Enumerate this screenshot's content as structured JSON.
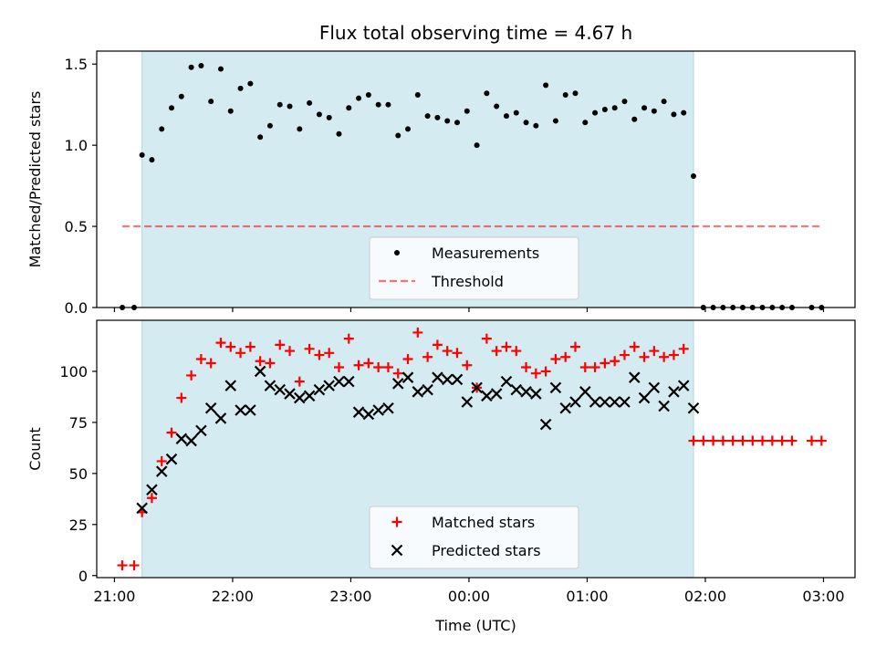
{
  "title": "Flux total observing time = 4.67 h",
  "colors": {
    "span": "#add8e6",
    "measurement": "#000000",
    "threshold": "#ff0000",
    "matched": "#ff0000",
    "predicted": "#000000"
  },
  "chart_data": [
    {
      "type": "scatter",
      "ylabel": "Matched/Predicted stars",
      "xlabel": "",
      "xlim": [
        "20:51",
        "03:16"
      ],
      "ylim": [
        0,
        1.58
      ],
      "yticks": [
        0.0,
        0.5,
        1.0,
        1.5
      ],
      "ytick_labels": [
        "0.0",
        "0.5",
        "1.0",
        "1.5"
      ],
      "shaded_span": [
        "21:14",
        "01:54"
      ],
      "legend_position": "lower center",
      "legend": [
        "Measurements",
        "Threshold"
      ],
      "series": [
        {
          "name": "Measurements",
          "marker": "dot",
          "x": [
            "21:04",
            "21:10",
            "21:14",
            "21:19",
            "21:24",
            "21:29",
            "21:34",
            "21:39",
            "21:44",
            "21:49",
            "21:54",
            "21:59",
            "22:04",
            "22:09",
            "22:14",
            "22:19",
            "22:24",
            "22:29",
            "22:34",
            "22:39",
            "22:44",
            "22:49",
            "22:54",
            "22:59",
            "23:04",
            "23:09",
            "23:14",
            "23:19",
            "23:24",
            "23:29",
            "23:34",
            "23:39",
            "23:44",
            "23:49",
            "23:54",
            "23:59",
            "00:04",
            "00:09",
            "00:14",
            "00:19",
            "00:24",
            "00:29",
            "00:34",
            "00:39",
            "00:44",
            "00:49",
            "00:54",
            "00:59",
            "01:04",
            "01:09",
            "01:14",
            "01:19",
            "01:24",
            "01:29",
            "01:34",
            "01:39",
            "01:44",
            "01:49",
            "01:54",
            "01:59",
            "02:04",
            "02:09",
            "02:14",
            "02:19",
            "02:24",
            "02:29",
            "02:34",
            "02:39",
            "02:44",
            "02:54",
            "02:59"
          ],
          "y": [
            0,
            0,
            0.94,
            0.91,
            1.1,
            1.23,
            1.3,
            1.48,
            1.49,
            1.27,
            1.47,
            1.21,
            1.35,
            1.38,
            1.05,
            1.12,
            1.25,
            1.24,
            1.1,
            1.26,
            1.19,
            1.17,
            1.07,
            1.23,
            1.29,
            1.31,
            1.25,
            1.25,
            1.06,
            1.1,
            1.31,
            1.18,
            1.17,
            1.15,
            1.14,
            1.21,
            1.0,
            1.32,
            1.24,
            1.18,
            1.2,
            1.14,
            1.12,
            1.37,
            1.15,
            1.31,
            1.32,
            1.14,
            1.2,
            1.22,
            1.23,
            1.27,
            1.16,
            1.23,
            1.21,
            1.27,
            1.19,
            1.2,
            0.81,
            0,
            0,
            0,
            0,
            0,
            0,
            0,
            0,
            0,
            0,
            0,
            0
          ]
        },
        {
          "name": "Threshold",
          "style": "dashed",
          "x": [
            "21:04",
            "02:59"
          ],
          "y": [
            0.5,
            0.5
          ]
        }
      ]
    },
    {
      "type": "scatter",
      "ylabel": "Count",
      "xlabel": "Time (UTC)",
      "xlim": [
        "20:51",
        "03:16"
      ],
      "ylim": [
        -1,
        125
      ],
      "yticks": [
        0,
        25,
        50,
        75,
        100
      ],
      "ytick_labels": [
        "0",
        "25",
        "50",
        "75",
        "100"
      ],
      "xtick_labels": [
        "21:00",
        "22:00",
        "23:00",
        "00:00",
        "01:00",
        "02:00",
        "03:00"
      ],
      "shaded_span": [
        "21:14",
        "01:54"
      ],
      "legend_position": "lower center",
      "legend": [
        "Matched stars",
        "Predicted stars"
      ],
      "series": [
        {
          "name": "Matched stars",
          "marker": "plus",
          "x": [
            "21:04",
            "21:10",
            "21:14",
            "21:19",
            "21:24",
            "21:29",
            "21:34",
            "21:39",
            "21:44",
            "21:49",
            "21:54",
            "21:59",
            "22:04",
            "22:09",
            "22:14",
            "22:19",
            "22:24",
            "22:29",
            "22:34",
            "22:39",
            "22:44",
            "22:49",
            "22:54",
            "22:59",
            "23:04",
            "23:09",
            "23:14",
            "23:19",
            "23:24",
            "23:29",
            "23:34",
            "23:39",
            "23:44",
            "23:49",
            "23:54",
            "23:59",
            "00:04",
            "00:09",
            "00:14",
            "00:19",
            "00:24",
            "00:29",
            "00:34",
            "00:39",
            "00:44",
            "00:49",
            "00:54",
            "00:59",
            "01:04",
            "01:09",
            "01:14",
            "01:19",
            "01:24",
            "01:29",
            "01:34",
            "01:39",
            "01:44",
            "01:49",
            "01:54",
            "01:59",
            "02:04",
            "02:09",
            "02:14",
            "02:19",
            "02:24",
            "02:29",
            "02:34",
            "02:39",
            "02:44",
            "02:54",
            "02:59"
          ],
          "y": [
            5,
            5,
            31,
            38,
            56,
            70,
            87,
            98,
            106,
            104,
            114,
            112,
            109,
            112,
            105,
            104,
            113,
            110,
            95,
            111,
            108,
            109,
            102,
            116,
            103,
            104,
            102,
            102,
            99,
            106,
            119,
            107,
            113,
            110,
            109,
            103,
            92,
            116,
            110,
            112,
            110,
            102,
            99,
            100,
            106,
            107,
            112,
            102,
            102,
            104,
            105,
            108,
            112,
            107,
            110,
            107,
            108,
            111,
            66,
            66,
            66,
            66,
            66,
            66,
            66,
            66,
            66,
            66,
            66,
            66,
            66
          ]
        },
        {
          "name": "Predicted stars",
          "marker": "x",
          "x": [
            "21:14",
            "21:19",
            "21:24",
            "21:29",
            "21:34",
            "21:39",
            "21:44",
            "21:49",
            "21:54",
            "21:59",
            "22:04",
            "22:09",
            "22:14",
            "22:19",
            "22:24",
            "22:29",
            "22:34",
            "22:39",
            "22:44",
            "22:49",
            "22:54",
            "22:59",
            "23:04",
            "23:09",
            "23:14",
            "23:19",
            "23:24",
            "23:29",
            "23:34",
            "23:39",
            "23:44",
            "23:49",
            "23:54",
            "23:59",
            "00:04",
            "00:09",
            "00:14",
            "00:19",
            "00:24",
            "00:29",
            "00:34",
            "00:39",
            "00:44",
            "00:49",
            "00:54",
            "00:59",
            "01:04",
            "01:09",
            "01:14",
            "01:19",
            "01:24",
            "01:29",
            "01:34",
            "01:39",
            "01:44",
            "01:49",
            "01:54"
          ],
          "y": [
            33,
            42,
            51,
            57,
            67,
            66,
            71,
            82,
            77,
            93,
            81,
            81,
            100,
            93,
            91,
            89,
            87,
            88,
            91,
            93,
            95,
            95,
            80,
            79,
            81,
            82,
            94,
            97,
            90,
            91,
            97,
            96,
            96,
            85,
            92,
            88,
            89,
            95,
            91,
            90,
            89,
            74,
            92,
            82,
            85,
            90,
            85,
            85,
            85,
            85,
            97,
            87,
            92,
            83,
            90,
            93,
            82
          ]
        }
      ]
    }
  ]
}
